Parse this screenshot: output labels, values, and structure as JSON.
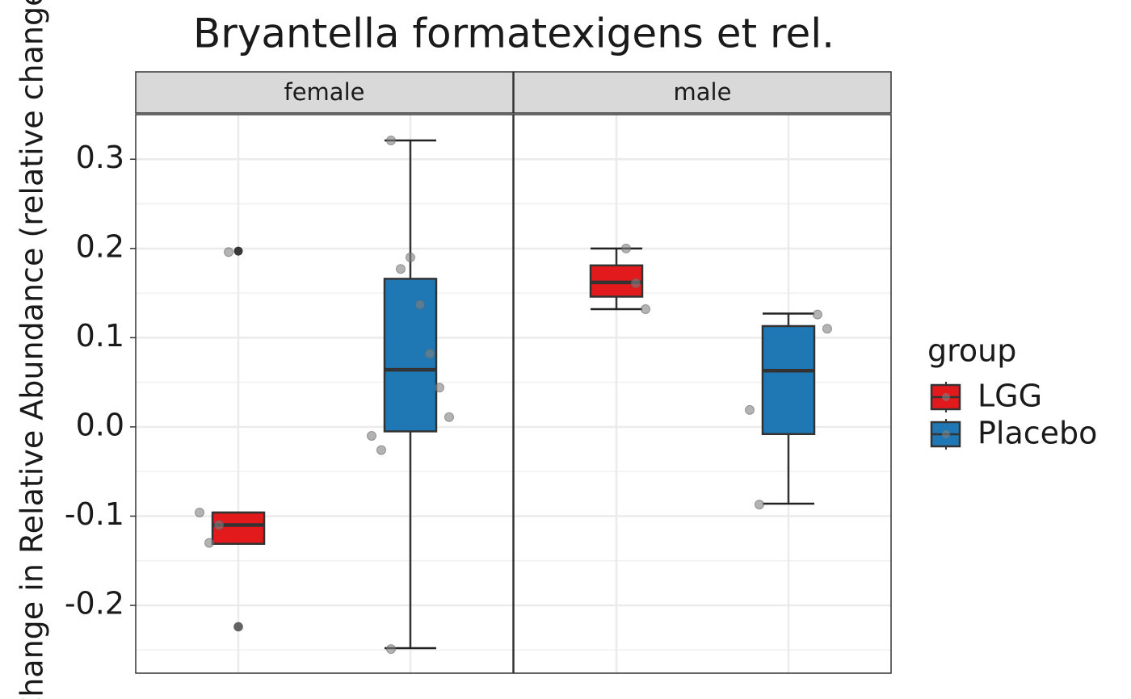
{
  "chart_data": {
    "type": "boxplot",
    "title": "Bryantella formatexigens et rel.",
    "y_label": "Change in Relative Abundance (relative change)",
    "legend_title": "group",
    "ylim": [
      -0.276,
      0.35
    ],
    "yticks": [
      -0.2,
      -0.1,
      {
        "value": 0,
        "label": "0.0"
      },
      0.1,
      0.2,
      0.3
    ],
    "grid": true,
    "series": [
      {
        "name": "LGG",
        "color": "#e31a1c"
      },
      {
        "name": "Placebo",
        "color": "#1f78b4"
      }
    ],
    "facets": [
      {
        "name": "female",
        "boxes": [
          {
            "whisker_low": -0.131,
            "q1": -0.131,
            "median": -0.11,
            "q3": -0.096,
            "whisker_high": -0.096,
            "outliers": [
              0.197,
              -0.224
            ],
            "points": [
              -0.096,
              -0.13,
              -0.11,
              0.196,
              -0.224
            ]
          },
          {
            "whisker_low": -0.248,
            "q1": -0.005,
            "median": 0.064,
            "q3": 0.166,
            "whisker_high": 0.321,
            "outliers": [],
            "points": [
              0.321,
              0.177,
              0.19,
              0.137,
              0.082,
              0.044,
              0.011,
              -0.01,
              -0.026,
              -0.249
            ]
          }
        ]
      },
      {
        "name": "male",
        "boxes": [
          {
            "whisker_low": 0.132,
            "q1": 0.146,
            "median": 0.162,
            "q3": 0.181,
            "whisker_high": 0.2,
            "outliers": [],
            "points": [
              0.2,
              0.161,
              0.132
            ]
          },
          {
            "whisker_low": -0.086,
            "q1": -0.008,
            "median": 0.063,
            "q3": 0.113,
            "whisker_high": 0.127,
            "outliers": [],
            "points": [
              0.126,
              0.11,
              0.019,
              -0.087
            ]
          }
        ]
      }
    ]
  }
}
